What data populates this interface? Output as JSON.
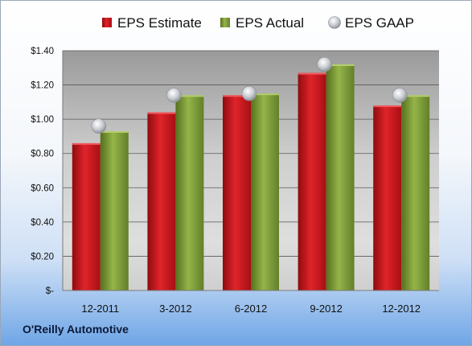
{
  "company_label": "O'Reilly Automotive",
  "colors": {
    "estimate": "#c8151b",
    "actual": "#7c9a32",
    "gaap": "#b9bdc3"
  },
  "chart_data": {
    "type": "bar",
    "categories": [
      "12-2011",
      "3-2012",
      "6-2012",
      "9-2012",
      "12-2012"
    ],
    "series": [
      {
        "name": "EPS Estimate",
        "kind": "bar",
        "values": [
          0.86,
          1.04,
          1.14,
          1.27,
          1.08
        ]
      },
      {
        "name": "EPS Actual",
        "kind": "bar",
        "values": [
          0.93,
          1.14,
          1.15,
          1.32,
          1.14
        ]
      },
      {
        "name": "EPS GAAP",
        "kind": "marker",
        "values": [
          0.96,
          1.14,
          1.15,
          1.32,
          1.14
        ]
      }
    ],
    "ylim": [
      0,
      1.4
    ],
    "yticks": [
      {
        "value": 0,
        "label": "$-"
      },
      {
        "value": 0.2,
        "label": "$0.20"
      },
      {
        "value": 0.4,
        "label": "$0.40"
      },
      {
        "value": 0.6,
        "label": "$0.60"
      },
      {
        "value": 0.8,
        "label": "$0.80"
      },
      {
        "value": 1.0,
        "label": "$1.00"
      },
      {
        "value": 1.2,
        "label": "$1.20"
      },
      {
        "value": 1.4,
        "label": "$1.40"
      }
    ],
    "grid": true,
    "legend": "top"
  }
}
